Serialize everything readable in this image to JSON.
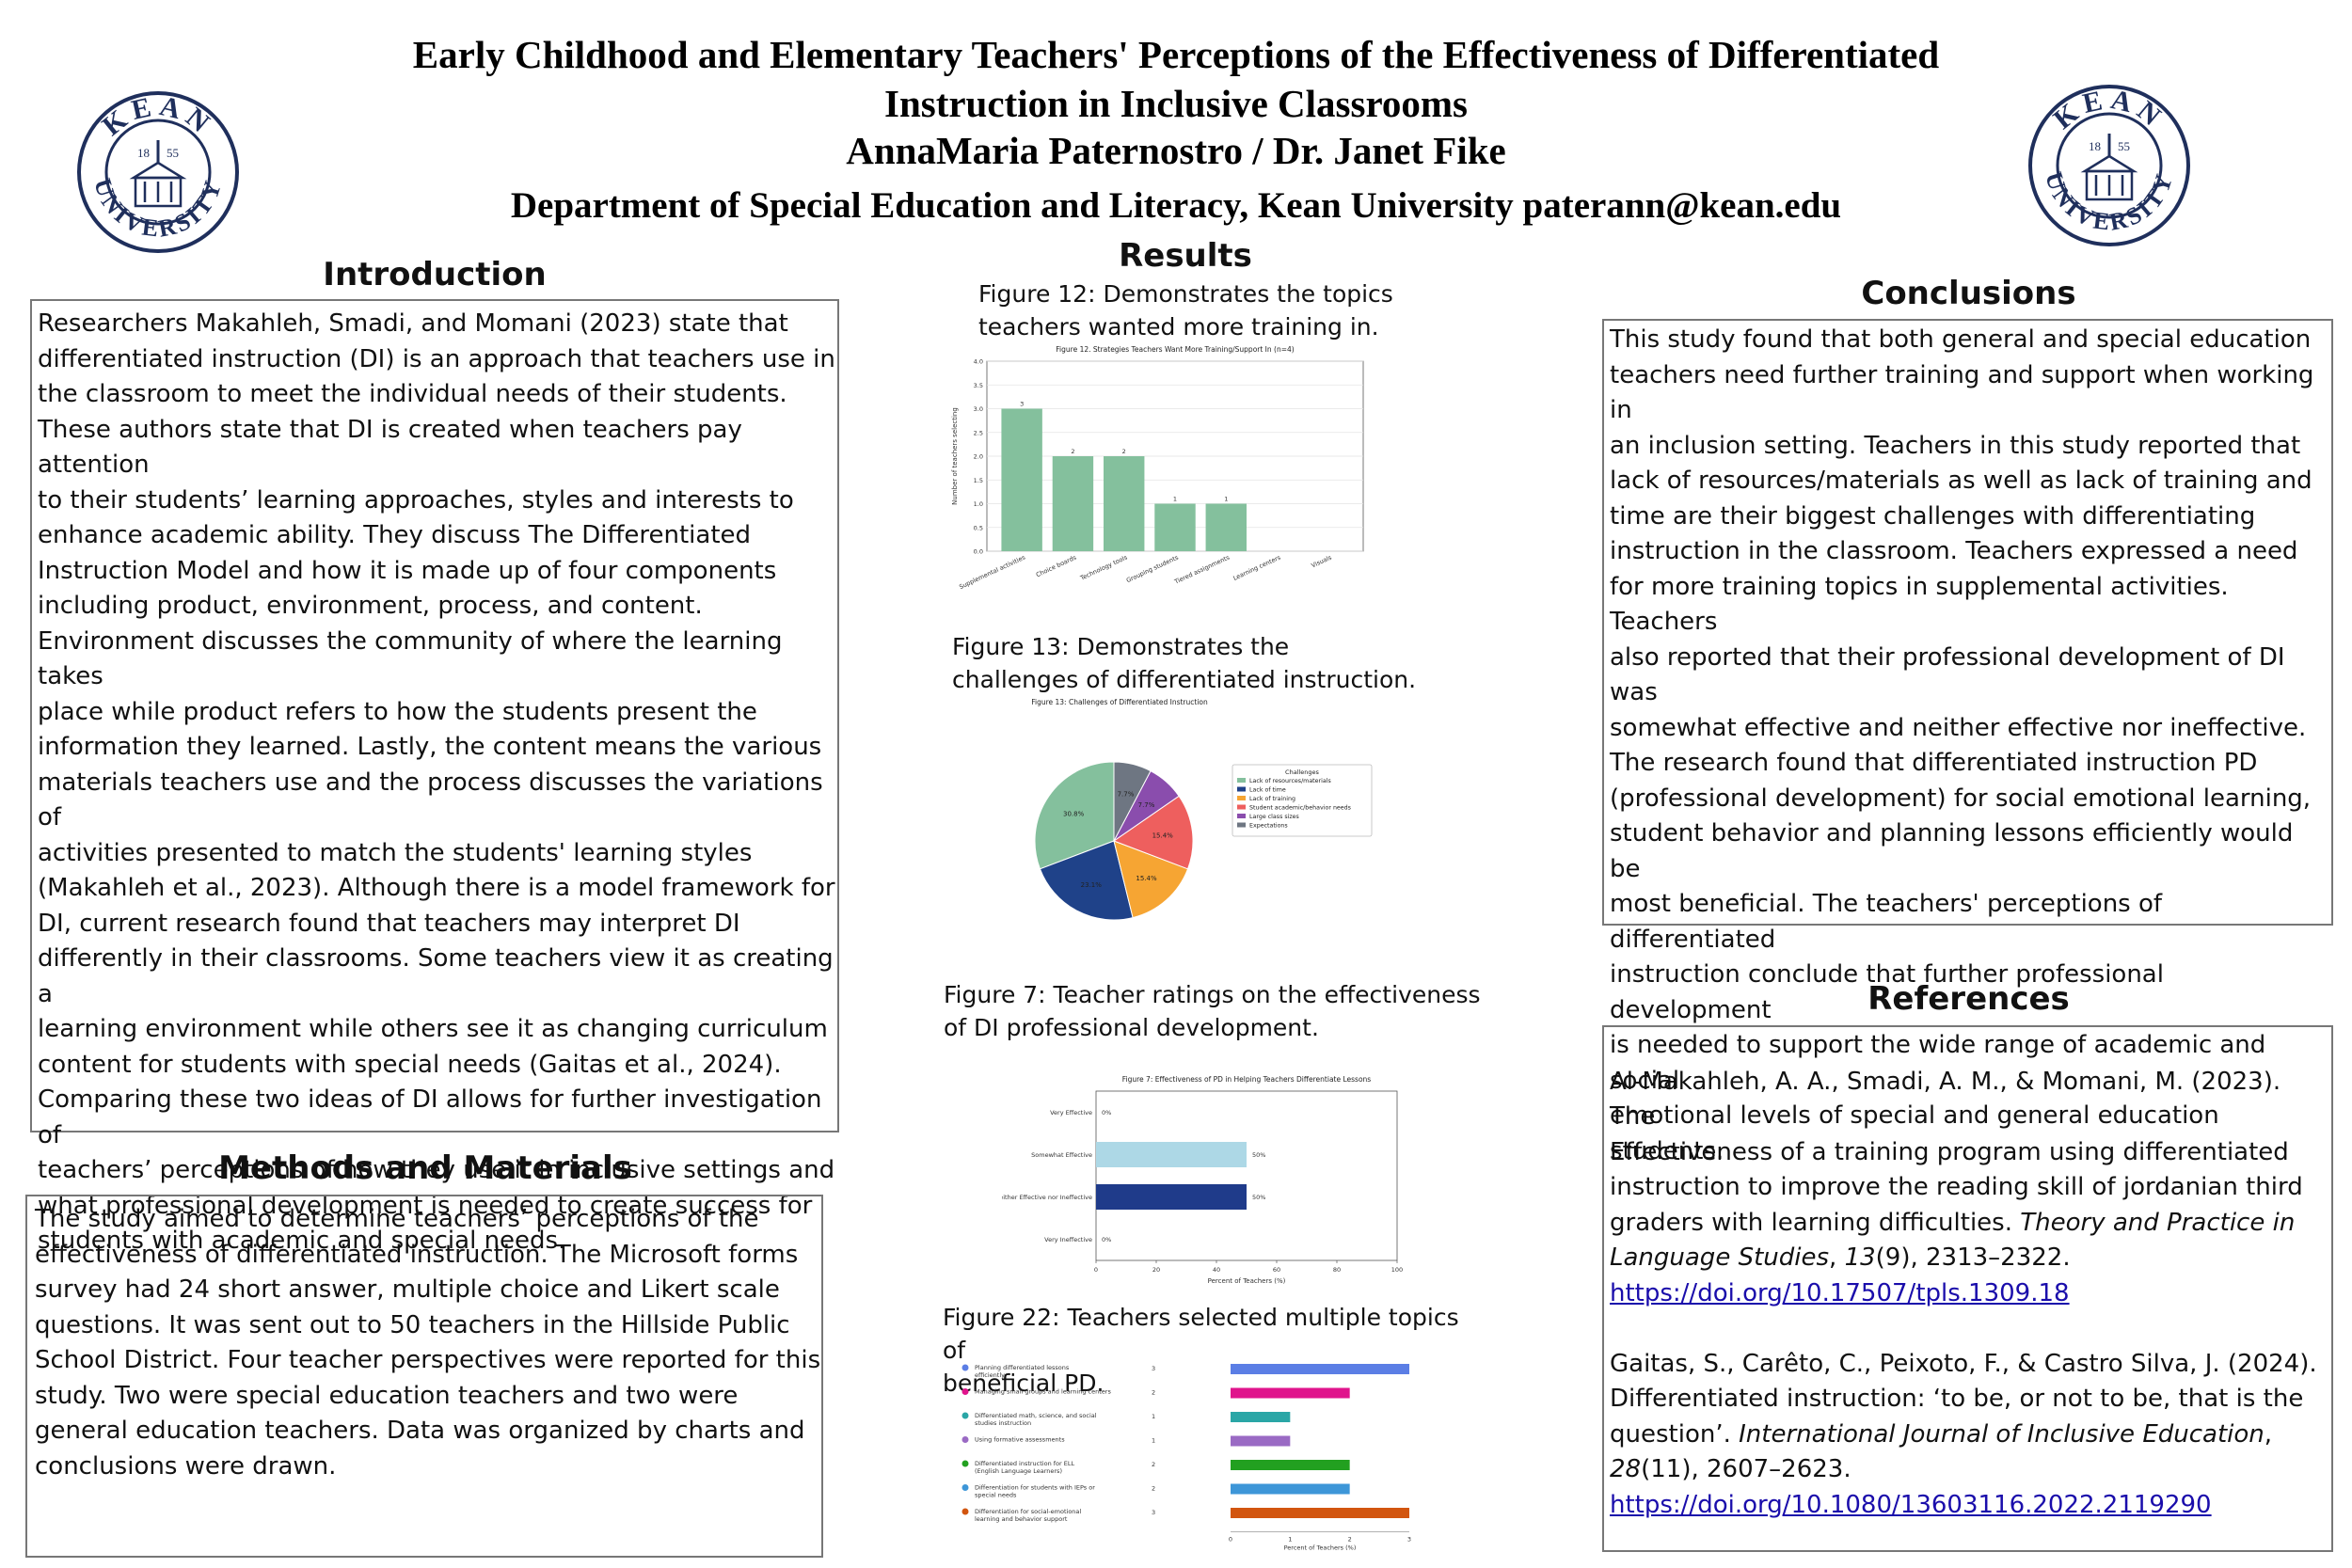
{
  "poster": {
    "title_line1": "Early Childhood and Elementary Teachers' Perceptions of the Effectiveness of Differentiated",
    "title_line2": "Instruction in Inclusive Classrooms",
    "authors": "AnnaMaria Paternostro / Dr. Janet Fike",
    "affiliation": "Department of Special Education and Literacy, Kean University paterann@kean.edu"
  },
  "logo": {
    "top": "KEAN",
    "bottom": "UNIVERSITY",
    "year_left": "18",
    "year_right": "55",
    "color": "#1f2f5c"
  },
  "introduction": {
    "heading": "Introduction",
    "text": "Researchers Makahleh, Smadi, and Momani (2023) state that\ndifferentiated instruction (DI) is an approach that teachers use in\nthe classroom to meet the individual needs of their students.\nThese authors state that DI is created when teachers pay attention\nto their students’ learning approaches, styles and interests to\nenhance academic ability. They discuss The Differentiated\nInstruction Model and how it is made up of four components\nincluding product, environment, process, and content.\nEnvironment discusses the community of where the learning takes\nplace while product refers to how the students present the\ninformation they learned. Lastly, the content means the various\nmaterials teachers use and the process discusses the variations of\nactivities presented to match the students' learning styles\n(Makahleh et al., 2023). Although there is a model framework for\nDI, current research found that teachers may interpret DI\ndifferently in their classrooms. Some teachers view it as creating a\nlearning environment while others see it as changing curriculum\ncontent for students with special needs (Gaitas et al., 2024).\nComparing these two ideas of DI allows for further investigation of\nteachers’ perceptions of how they use it in inclusive settings and\nwhat professional development is needed to create success for\nstudents with academic and special needs."
  },
  "methods": {
    "heading": "Methods and Materials",
    "text": " The study aimed to determine teachers’ perceptions of the\neffectiveness of differentiated instruction. The Microsoft forms\nsurvey had 24 short answer, multiple choice and Likert scale\nquestions. It was sent out to 50 teachers in the Hillside Public\nSchool District. Four teacher perspectives were reported for this\nstudy.  Two were special education teachers and two were\ngeneral education teachers. Data was organized by charts and\nconclusions were drawn."
  },
  "results": {
    "heading": "Results",
    "fig12_caption": "Figure 12: Demonstrates the topics\nteachers wanted more training in.",
    "fig13_caption": "Figure 13: Demonstrates the\nchallenges of differentiated instruction.",
    "fig7_caption": "Figure 7: Teacher ratings on the effectiveness\nof DI professional development.",
    "fig22_caption": "Figure 22: Teachers selected multiple topics of\nbeneficial PD."
  },
  "conclusions": {
    "heading": "Conclusions",
    "text": "This study found that both general and special education\nteachers need further training and support when working in\nan inclusion setting. Teachers in this study reported that\nlack of resources/materials as well as lack of training and\ntime are their biggest challenges with differentiating\ninstruction in the classroom. Teachers expressed a need\nfor more training topics in supplemental activities. Teachers\nalso reported that their professional development of DI was\nsomewhat effective and neither effective nor ineffective.\nThe research found that differentiated instruction PD\n(professional development) for social emotional learning,\nstudent behavior and planning lessons efficiently would be\nmost beneficial. The teachers' perceptions of differentiated\ninstruction conclude that further professional development\nis needed to support the wide range of academic and social\nemotional levels of special and general education students."
  },
  "references": {
    "heading": "References",
    "ref1_text": "Al-Makahleh, A. A., Smadi, A. M., & Momani, M. (2023). The\nEffectiveness of a training program using differentiated\ninstruction to improve the reading skill of jordanian third\ngraders with learning difficulties. ",
    "ref1_journal": "Theory and Practice in\nLanguage Studies",
    "ref1_sep": ", ",
    "ref1_volume": "13",
    "ref1_rest": "(9), 2313–2322.",
    "ref1_doi": "https://doi.org/10.17507/tpls.1309.18",
    "ref2_text": "Gaitas, S., Carêto, C., Peixoto, F., & Castro Silva, J. (2024).\nDifferentiated instruction: ‘to be, or not to be, that is the\nquestion’. ",
    "ref2_journal": "International Journal of Inclusive Education",
    "ref2_sep": ",\n",
    "ref2_volume": "28",
    "ref2_rest": "(11), 2607–2623.",
    "ref2_doi": "https://doi.org/10.1080/13603116.2022.2119290"
  },
  "chart_data": [
    {
      "id": "fig12",
      "type": "bar",
      "title": "Figure 12. Strategies Teachers Want More Training/Support In (n=4)",
      "xlabel": "",
      "ylabel": "Number of teachers selecting",
      "categories": [
        "Supplemental activities",
        "Choice boards",
        "Technology tools",
        "Grouping students",
        "Tiered assignments",
        "Learning centers",
        "Visuals"
      ],
      "values": [
        3,
        2,
        2,
        1,
        1,
        0,
        0
      ],
      "data_labels": [
        "3",
        "2",
        "2",
        "1",
        "1",
        "",
        ""
      ],
      "ylim": [
        0,
        4
      ],
      "yticks": [
        "0.0",
        "0.5",
        "1.0",
        "1.5",
        "2.0",
        "2.5",
        "3.0",
        "3.5",
        "4.0"
      ],
      "grid": true,
      "color": "#84c09d"
    },
    {
      "id": "fig13",
      "type": "pie",
      "title": "Figure 13: Challenges of Differentiated Instruction",
      "legend_title": "Challenges",
      "legend_position": "right",
      "labels": [
        "Lack of resources/materials",
        "Lack of time",
        "Lack of training",
        "Student academic/behavior needs",
        "Large class sizes",
        "Expectations"
      ],
      "values": [
        30.8,
        23.1,
        15.4,
        15.4,
        7.7,
        7.7
      ],
      "pct_labels": [
        "30.8%",
        "23.1%",
        "15.4%",
        "15.4%",
        "7.7%",
        "7.7%"
      ],
      "colors": [
        "#84c09d",
        "#1f4289",
        "#f6a533",
        "#ee5f5e",
        "#8a4dad",
        "#6e7682"
      ]
    },
    {
      "id": "fig7",
      "type": "bar",
      "orientation": "horizontal",
      "title": "Figure 7: Effectiveness of PD in Helping Teachers Differentiate Lessons",
      "xlabel": "Percent of Teachers (%)",
      "ylabel": "",
      "categories": [
        "Very Effective",
        "Somewhat Effective",
        "Neither Effective nor Ineffective",
        "Very Ineffective"
      ],
      "values": [
        0,
        50,
        50,
        0
      ],
      "data_labels": [
        "0%",
        "50%",
        "50%",
        "0%"
      ],
      "xlim": [
        0,
        100
      ],
      "xticks": [
        "0",
        "20",
        "40",
        "60",
        "80",
        "100"
      ],
      "colors": [
        "#add8e6",
        "#add8e6",
        "#1f3b8a",
        "#add8e6"
      ]
    },
    {
      "id": "fig22",
      "type": "bar",
      "orientation": "horizontal",
      "xlabel": "Percent of Teachers (%)",
      "categories": [
        "Planning differentiated lessons efficiently",
        "Managing small groups and learning centers",
        "Differentiated math, science, and social studies instruction",
        "Using formative assessments",
        "Differentiated instruction for ELL (English Language Learners)",
        "Differentiation for students with IEPs or special needs",
        "Differentiation for social-emotional learning and behavior support"
      ],
      "values": [
        3,
        2,
        1,
        1,
        2,
        2,
        3
      ],
      "counts": [
        "3",
        "2",
        "1",
        "1",
        "2",
        "2",
        "3"
      ],
      "xlim": [
        0,
        3
      ],
      "xticks": [
        "0",
        "1",
        "2",
        "3"
      ],
      "colors": [
        "#5b7ee5",
        "#e0148c",
        "#2aa6a6",
        "#9a6ac4",
        "#22a020",
        "#3d96d8",
        "#d2550f"
      ]
    }
  ]
}
